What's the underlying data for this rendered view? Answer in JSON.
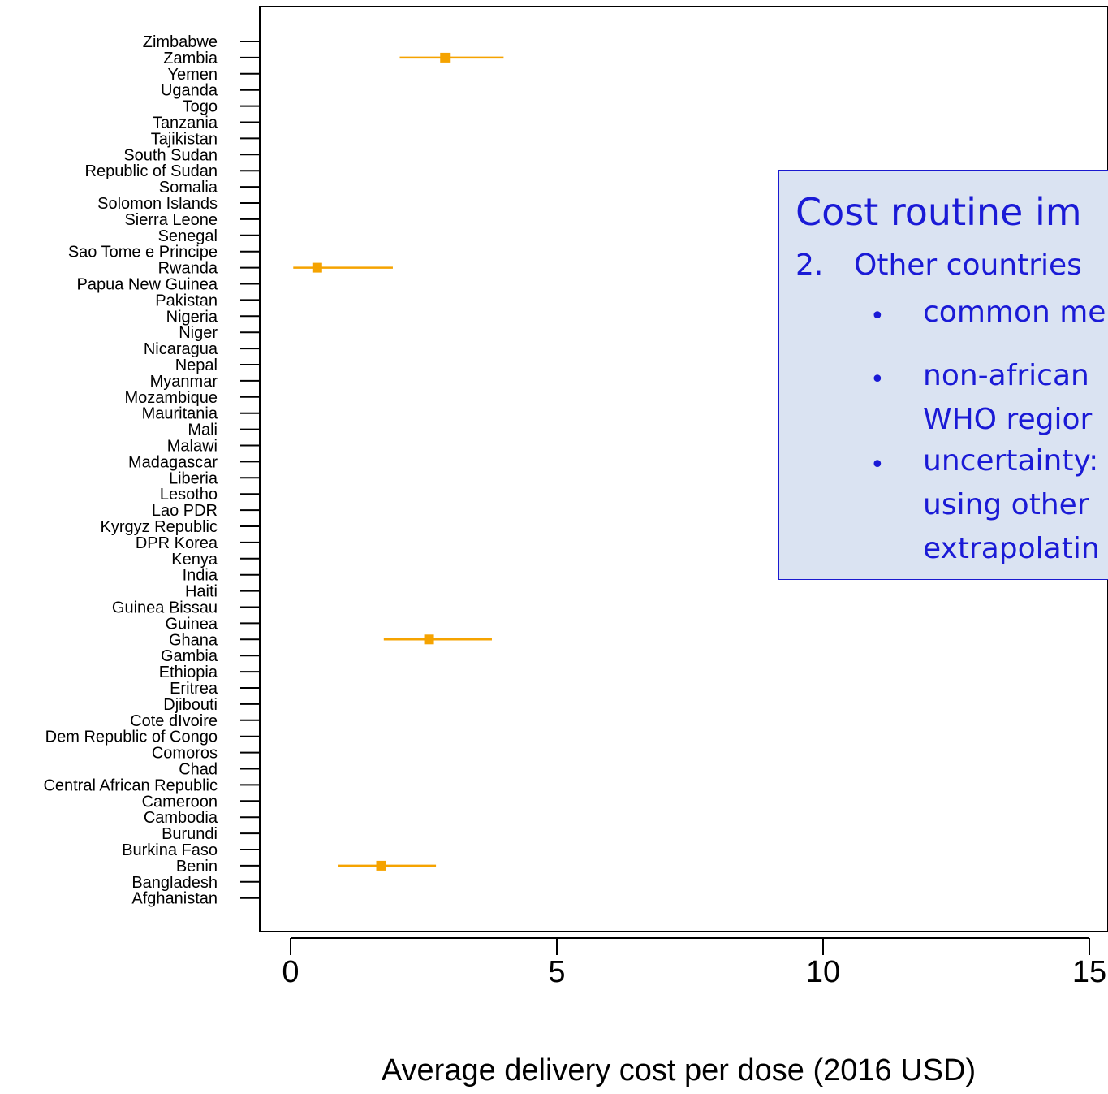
{
  "chart_data": {
    "type": "scatter",
    "xlabel": "Average delivery cost per dose (2016 USD)",
    "xlim": [
      -0.6,
      15.3
    ],
    "xticks": [
      0,
      5,
      10,
      15
    ],
    "xtick_labels": [
      "0",
      "5",
      "10",
      "15"
    ],
    "categories": [
      "Zimbabwe",
      "Zambia",
      "Yemen",
      "Uganda",
      "Togo",
      "Tanzania",
      "Tajikistan",
      "South Sudan",
      "Republic of Sudan",
      "Somalia",
      "Solomon Islands",
      "Sierra Leone",
      "Senegal",
      "Sao Tome e Principe",
      "Rwanda",
      "Papua New Guinea",
      "Pakistan",
      "Nigeria",
      "Niger",
      "Nicaragua",
      "Nepal",
      "Myanmar",
      "Mozambique",
      "Mauritania",
      "Mali",
      "Malawi",
      "Madagascar",
      "Liberia",
      "Lesotho",
      "Lao PDR",
      "Kyrgyz Republic",
      "DPR Korea",
      "Kenya",
      "India",
      "Haiti",
      "Guinea Bissau",
      "Guinea",
      "Ghana",
      "Gambia",
      "Ethiopia",
      "Eritrea",
      "Djibouti",
      "Cote dIvoire",
      "Dem Republic of Congo",
      "Comoros",
      "Chad",
      "Central African Republic",
      "Cameroon",
      "Cambodia",
      "Burundi",
      "Burkina Faso",
      "Benin",
      "Bangladesh",
      "Afghanistan"
    ],
    "points": [
      {
        "country": "Zambia",
        "value": 2.9,
        "low": 2.05,
        "high": 4.0
      },
      {
        "country": "Rwanda",
        "value": 0.5,
        "low": 0.05,
        "high": 1.92
      },
      {
        "country": "Ghana",
        "value": 2.6,
        "low": 1.75,
        "high": 3.78
      },
      {
        "country": "Benin",
        "value": 1.7,
        "low": 0.9,
        "high": 2.73
      }
    ],
    "point_color": "#f5a300"
  },
  "overlay": {
    "title": "Cost routine im",
    "item_number": "2.",
    "item_text": "Other countries",
    "bullet_char": "•",
    "lines": [
      "common me",
      "non-african",
      "WHO regior",
      "uncertainty:",
      "using other",
      "extrapolatin"
    ]
  }
}
